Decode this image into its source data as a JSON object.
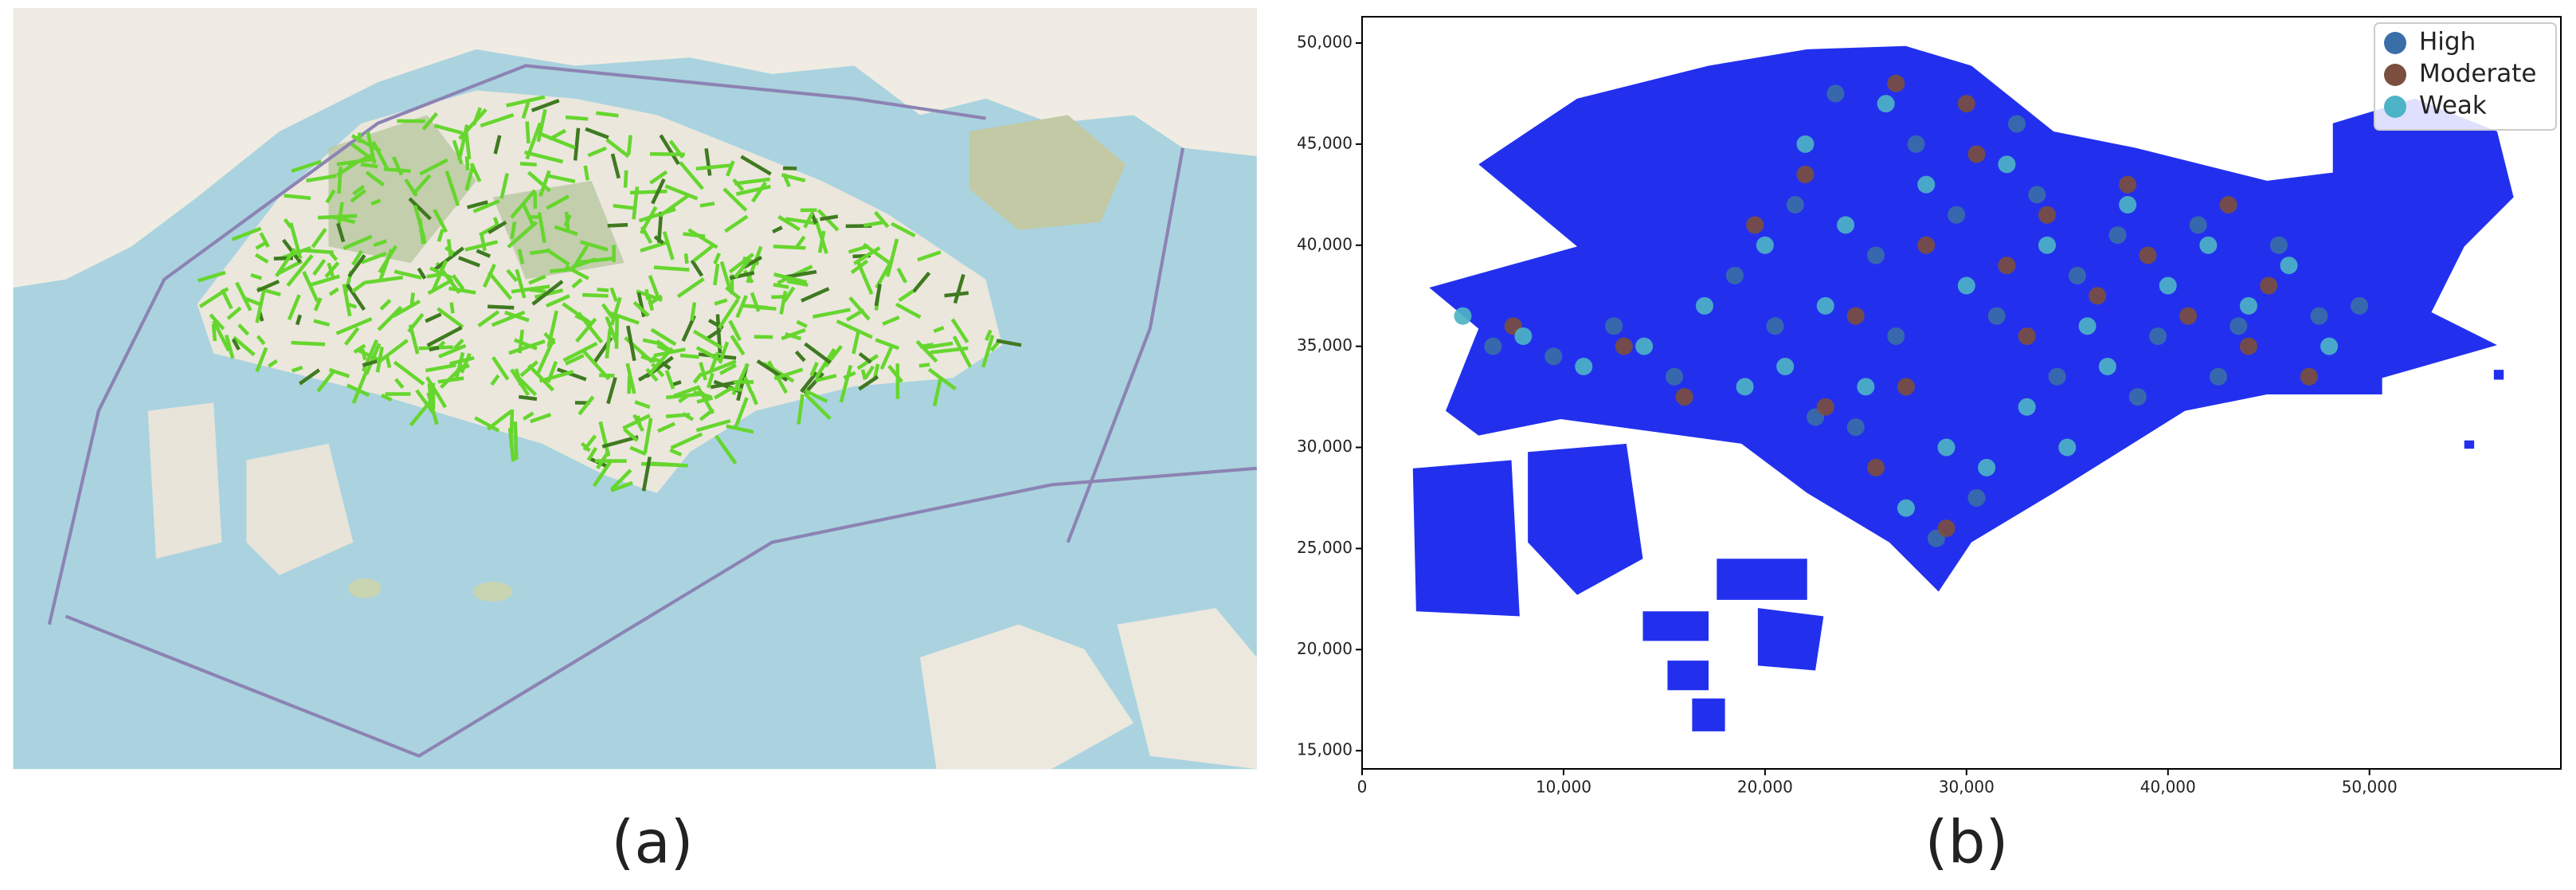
{
  "panels": [
    {
      "label": "(a)"
    },
    {
      "label": "(b)"
    }
  ],
  "chart_data": {
    "type": "scatter",
    "xlim": [
      0,
      59500
    ],
    "ylim": [
      14100,
      51300
    ],
    "xticks": [
      0,
      {
        "value": 10000,
        "label": "10,000"
      },
      {
        "value": 20000,
        "label": "20,000"
      },
      {
        "value": 30000,
        "label": "30,000"
      },
      {
        "value": 40000,
        "label": "40,000"
      },
      {
        "value": 50000,
        "label": "50,000"
      }
    ],
    "yticks": [
      {
        "value": 15000,
        "label": "15,000"
      },
      {
        "value": 20000,
        "label": "20,000"
      },
      {
        "value": 25000,
        "label": "25,000"
      },
      {
        "value": 30000,
        "label": "30,000"
      },
      {
        "value": 35000,
        "label": "35,000"
      },
      {
        "value": 40000,
        "label": "40,000"
      },
      {
        "value": 45000,
        "label": "45,000"
      },
      {
        "value": 50000,
        "label": "50,000"
      }
    ],
    "legend": "upper right",
    "series": [
      {
        "name": "High",
        "color": "#3a6ea8",
        "x": [
          6500,
          9500,
          12500,
          15500,
          18500,
          21500,
          23500,
          25500,
          27500,
          29500,
          31500,
          33500,
          35500,
          37500,
          39500,
          41500,
          43500,
          45500,
          47500,
          49500,
          22500,
          26500,
          30500,
          34500,
          38500,
          28500,
          24500,
          32500,
          20500,
          42500
        ],
        "values": [
          35000,
          34500,
          36000,
          33500,
          38500,
          42000,
          47500,
          39500,
          45000,
          41500,
          36500,
          42500,
          38500,
          40500,
          35500,
          41000,
          36000,
          40000,
          36500,
          37000,
          31500,
          35500,
          27500,
          33500,
          32500,
          25500,
          31000,
          46000,
          36000,
          33500
        ]
      },
      {
        "name": "Moderate",
        "color": "#7b4e3f",
        "x": [
          7500,
          13000,
          16000,
          19500,
          22000,
          24500,
          26500,
          28000,
          30500,
          32000,
          34000,
          36500,
          39000,
          41000,
          43000,
          45000,
          47000,
          27000,
          29000,
          33000,
          25500,
          38000,
          44000,
          23000,
          30000
        ],
        "values": [
          36000,
          35000,
          32500,
          41000,
          43500,
          36500,
          48000,
          40000,
          44500,
          39000,
          41500,
          37500,
          39500,
          36500,
          42000,
          38000,
          33500,
          33000,
          26000,
          35500,
          29000,
          43000,
          35000,
          32000,
          47000
        ]
      },
      {
        "name": "Weak",
        "color": "#4db3c6",
        "x": [
          5000,
          8000,
          11000,
          14000,
          17000,
          20000,
          22000,
          24000,
          26000,
          28000,
          30000,
          32000,
          34000,
          36000,
          38000,
          40000,
          42000,
          44000,
          46000,
          48000,
          21000,
          25000,
          29000,
          33000,
          37000,
          27000,
          31000,
          23000,
          35000,
          19000
        ],
        "values": [
          36500,
          35500,
          34000,
          35000,
          37000,
          40000,
          45000,
          41000,
          47000,
          43000,
          38000,
          44000,
          40000,
          36000,
          42000,
          38000,
          40000,
          37000,
          39000,
          35000,
          34000,
          33000,
          30000,
          32000,
          34000,
          27000,
          29000,
          37000,
          30000,
          33000
        ]
      }
    ]
  }
}
